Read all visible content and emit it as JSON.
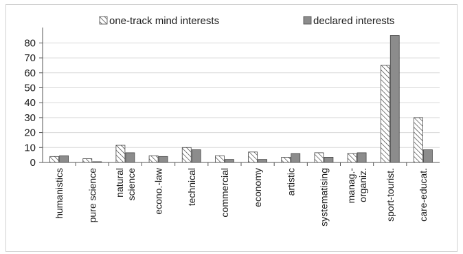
{
  "chart_data": {
    "type": "bar",
    "categories": [
      [
        "humanistics"
      ],
      [
        "pure science"
      ],
      [
        "natural",
        "science"
      ],
      [
        "econo.-law"
      ],
      [
        "technical"
      ],
      [
        "commercial"
      ],
      [
        "economy"
      ],
      [
        "artistic"
      ],
      [
        "systematising"
      ],
      [
        "manag.-",
        "organiz."
      ],
      [
        "sport-tourist."
      ],
      [
        "care-educat."
      ]
    ],
    "series": [
      {
        "name": "one-track mind interests",
        "pattern": "hatched",
        "values": [
          4,
          2.5,
          11.5,
          4.5,
          10,
          4.5,
          7,
          3.5,
          6.5,
          6,
          65,
          30
        ]
      },
      {
        "name": "declared interests",
        "color": "#8c8c8c",
        "values": [
          4.5,
          0.5,
          6.5,
          4,
          8.5,
          2,
          2,
          6,
          3.5,
          6.5,
          85,
          8.5
        ]
      }
    ],
    "yticks": [
      0,
      10,
      20,
      30,
      40,
      50,
      60,
      70,
      80
    ],
    "ylim": [
      0,
      88
    ],
    "grid": true,
    "legend_position": "top"
  }
}
